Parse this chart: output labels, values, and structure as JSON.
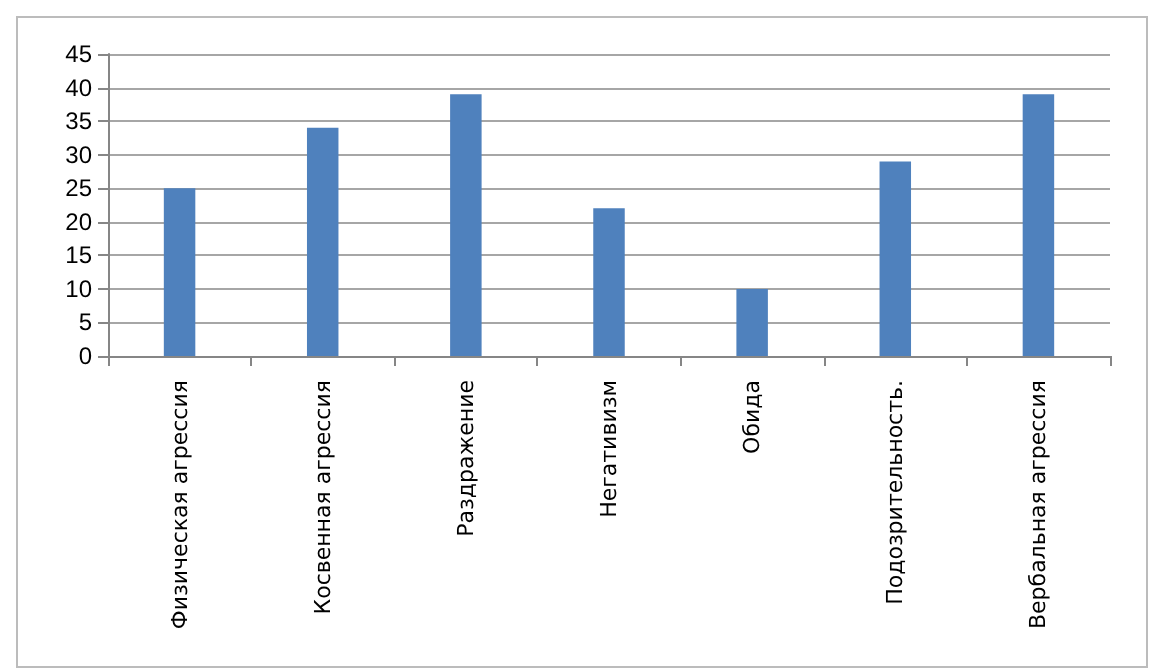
{
  "chart_data": {
    "type": "bar",
    "categories": [
      "Физическая агрессия",
      "Косвенная агрессия",
      "Раздражение",
      "Негативизм",
      "Обида",
      "Подозрительность.",
      "Вербальная агрессия"
    ],
    "values": [
      25,
      34,
      39,
      22,
      10,
      29,
      39
    ],
    "color": "#4f81bd",
    "ylim": [
      0,
      45
    ],
    "yticks": [
      0,
      5,
      10,
      15,
      20,
      25,
      30,
      35,
      40,
      45
    ],
    "grid": "y"
  }
}
